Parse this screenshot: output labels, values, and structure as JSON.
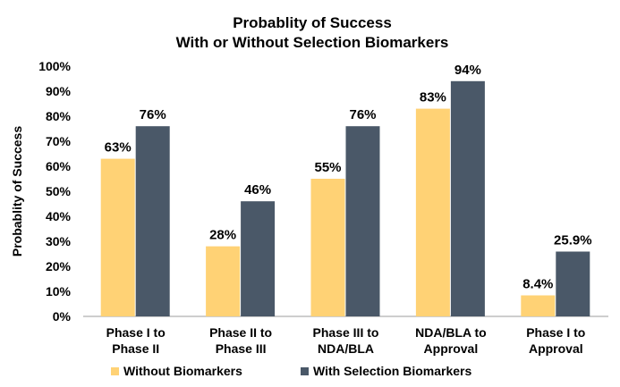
{
  "chart_data": {
    "type": "bar",
    "title_lines": [
      "Probablity of Success",
      "With or Without Selection Biomarkers"
    ],
    "xlabel": "",
    "ylabel": "Probablity of Success",
    "ylim": [
      0,
      100
    ],
    "y_ticks": [
      "0%",
      "10%",
      "20%",
      "30%",
      "40%",
      "50%",
      "60%",
      "70%",
      "80%",
      "90%",
      "100%"
    ],
    "categories": [
      [
        "Phase I to",
        "Phase II"
      ],
      [
        "Phase II to",
        "Phase III"
      ],
      [
        "Phase III to",
        "NDA/BLA"
      ],
      [
        "NDA/BLA to",
        "Approval"
      ],
      [
        "Phase I to",
        "Approval"
      ]
    ],
    "series": [
      {
        "name": "Without Biomarkers",
        "color": "#FFD275",
        "values": [
          63,
          28,
          55,
          83,
          8.4
        ],
        "labels": [
          "63%",
          "28%",
          "55%",
          "83%",
          "8.4%"
        ]
      },
      {
        "name": "With Selection Biomarkers",
        "color": "#4A5868",
        "values": [
          76,
          46,
          76,
          94,
          25.9
        ],
        "labels": [
          "76%",
          "46%",
          "76%",
          "94%",
          "25.9%"
        ]
      }
    ],
    "grid": false,
    "legend_position": "bottom"
  }
}
